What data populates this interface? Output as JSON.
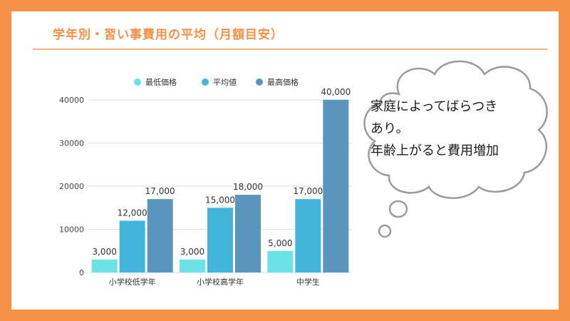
{
  "slide": {
    "title": "学年別・習い事費用の平均（月額目安）"
  },
  "bubble": {
    "lines": [
      "家庭によってばらつき",
      "あり。",
      "年齢上がると費用増加"
    ]
  },
  "colors": {
    "frame": "#F7914A",
    "title": "#F7914A",
    "series_min": "#6CE2E6",
    "series_avg": "#41B6DA",
    "series_max": "#5A95BE"
  },
  "chart_data": {
    "type": "bar",
    "title": "",
    "xlabel": "",
    "ylabel": "",
    "categories": [
      "小学校低学年",
      "小学校高学年",
      "中学生"
    ],
    "series": [
      {
        "name": "最低価格",
        "values": [
          3000,
          3000,
          5000
        ],
        "labels": [
          "3,000",
          "3,000",
          "5,000"
        ],
        "color": "#6CE2E6"
      },
      {
        "name": "平均値",
        "values": [
          12000,
          15000,
          17000
        ],
        "labels": [
          "12,000",
          "15,000",
          "17,000"
        ],
        "color": "#41B6DA"
      },
      {
        "name": "最高価格",
        "values": [
          17000,
          18000,
          40000
        ],
        "labels": [
          "17,000",
          "18,000",
          "40,000"
        ],
        "color": "#5A95BE"
      }
    ],
    "ylim": [
      0,
      40000
    ],
    "yticks": [
      "0",
      "10000",
      "20000",
      "30000",
      "40000"
    ],
    "grid": true,
    "legend": "top"
  }
}
